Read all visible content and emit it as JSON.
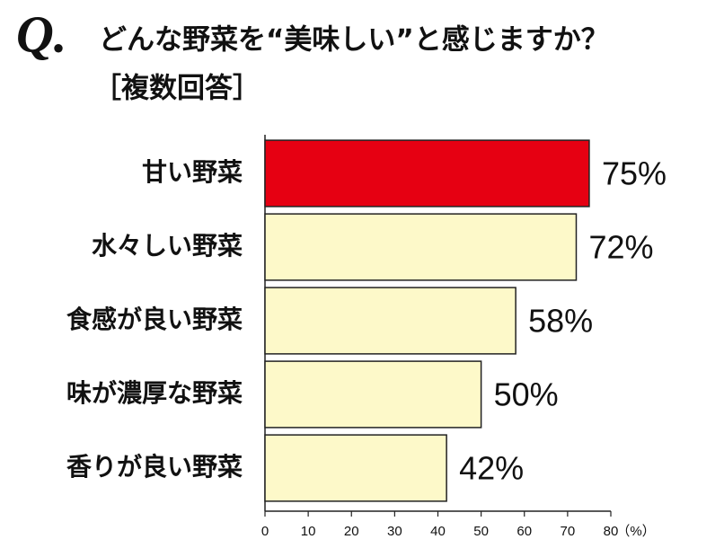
{
  "chart_data": {
    "type": "hbar",
    "question_label": "Q.",
    "title": "どんな野菜を“美味しい”と感じますか？",
    "subtitle": "［複数回答］",
    "categories": [
      "甘い野菜",
      "水々しい野菜",
      "食感が良い野菜",
      "味が濃厚な野菜",
      "香りが良い野菜"
    ],
    "values": [
      75,
      72,
      58,
      50,
      42
    ],
    "value_labels": [
      "75%",
      "72%",
      "58%",
      "50%",
      "42%"
    ],
    "colors": [
      "#e60012",
      "#fdf9c9",
      "#fdf9c9",
      "#fdf9c9",
      "#fdf9c9"
    ],
    "xlim": [
      0,
      80
    ],
    "xticks": [
      0,
      10,
      20,
      30,
      40,
      50,
      60,
      70,
      80
    ],
    "x_unit_label": "（%）"
  }
}
